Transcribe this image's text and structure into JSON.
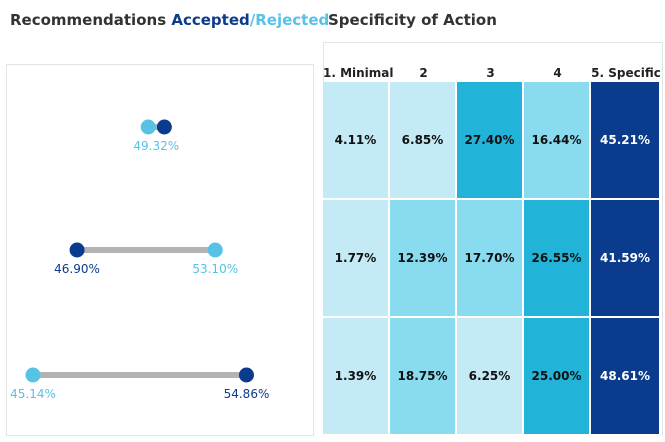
{
  "left": {
    "title_prefix": "Recommendations ",
    "title_accepted": "Accepted",
    "title_sep": "/",
    "title_rejected": "Rejected"
  },
  "right": {
    "title": "Specificity of Action"
  },
  "colors": {
    "accepted": "#0b3b8c",
    "rejected": "#56c2e6",
    "connector": "#b3b3b3"
  },
  "chart_data": [
    {
      "type": "dumbbell",
      "title": "Recommendations Accepted/Rejected",
      "xlim": [
        0,
        100
      ],
      "rows": [
        {
          "accepted": 50.68,
          "rejected": 49.32,
          "labels": [
            "49.32%"
          ]
        },
        {
          "accepted": 46.9,
          "rejected": 53.1,
          "labels": [
            "46.90%",
            "53.10%"
          ]
        },
        {
          "accepted": 54.86,
          "rejected": 45.14,
          "labels": [
            "45.14%",
            "54.86%"
          ]
        }
      ]
    },
    {
      "type": "heatmap",
      "title": "Specificity of Action",
      "columns": [
        "1. Minimal",
        "2",
        "3",
        "4",
        "5. Specific"
      ],
      "values": [
        [
          4.11,
          6.85,
          27.4,
          16.44,
          45.21
        ],
        [
          1.77,
          12.39,
          17.7,
          26.55,
          41.59
        ],
        [
          1.39,
          18.75,
          6.25,
          25.0,
          48.61
        ]
      ],
      "cell_labels": [
        [
          "4.11%",
          "6.85%",
          "27.40%",
          "16.44%",
          "45.21%"
        ],
        [
          "1.77%",
          "12.39%",
          "17.70%",
          "26.55%",
          "41.59%"
        ],
        [
          "1.39%",
          "18.75%",
          "6.25%",
          "25.00%",
          "48.61%"
        ]
      ]
    }
  ]
}
